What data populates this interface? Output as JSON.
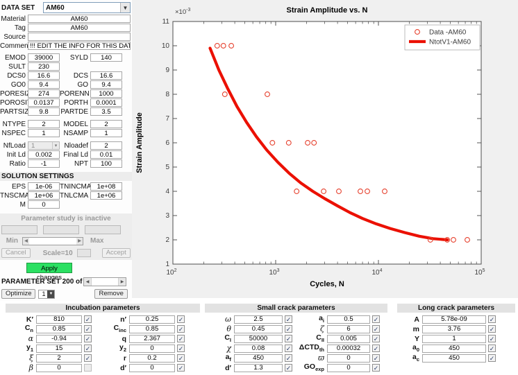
{
  "colors": {
    "apply_green": "#2be062",
    "figure_bg": "#f0f0f0",
    "series_red": "#eb1000",
    "marker_red": "#e6412e"
  },
  "left_panel": {
    "dataset_label": "DATA SET",
    "dataset_value": "AM60",
    "info_rows": [
      {
        "label": "Material",
        "value": "AM60"
      },
      {
        "label": "Tag",
        "value": "AM60"
      },
      {
        "label": "Source",
        "value": ""
      },
      {
        "label": "Comment",
        "value": "!!! EDIT THE INFO FOR THIS DAT"
      }
    ],
    "prop_rows": [
      {
        "l": {
          "label": "EMOD",
          "value": "39000"
        },
        "r": {
          "label": "SYLD",
          "value": "140"
        }
      },
      {
        "l": {
          "label": "SULT",
          "value": "230"
        },
        "r": null
      },
      {
        "l": {
          "label": "DCS0",
          "value": "16.6"
        },
        "r": {
          "label": "DCS",
          "value": "16.6"
        }
      },
      {
        "l": {
          "label": "GO0",
          "value": "9.4"
        },
        "r": {
          "label": "GO",
          "value": "9.4"
        }
      },
      {
        "l": {
          "label": "PORESIZ",
          "value": "274"
        },
        "r": {
          "label": "PORENN",
          "value": "1000"
        }
      },
      {
        "l": {
          "label": "POROSIT",
          "value": "0.0137"
        },
        "r": {
          "label": "PORTH",
          "value": "0.0001"
        }
      },
      {
        "l": {
          "label": "PARTSIZ",
          "value": "9.8"
        },
        "r": {
          "label": "PARTDE",
          "value": "3.5"
        }
      }
    ],
    "type_rows": [
      {
        "l": {
          "label": "NTYPE",
          "value": "2"
        },
        "r": {
          "label": "MODEL",
          "value": "2"
        }
      },
      {
        "l": {
          "label": "NSPEC",
          "value": "1"
        },
        "r": {
          "label": "NSAMP",
          "value": "1"
        }
      }
    ],
    "load_rows": [
      {
        "l": {
          "label": "NfLoad",
          "value": "1",
          "combo": true,
          "disabled": true
        },
        "r": {
          "label": "Nloadef",
          "value": "2"
        }
      },
      {
        "l": {
          "label": "Init Ld",
          "value": "0.002"
        },
        "r": {
          "label": "Final Ld",
          "value": "0.01"
        }
      },
      {
        "l": {
          "label": "Ratio",
          "value": "-1"
        },
        "r": {
          "label": "NPT",
          "value": "100"
        }
      }
    ],
    "solution_title": "SOLUTION SETTINGS",
    "solution_rows": [
      {
        "l": {
          "label": "EPS",
          "value": "1e-06"
        },
        "r": {
          "label": "TNINCMA",
          "value": "1e+08"
        }
      },
      {
        "l": {
          "label": "TNSCMA",
          "value": "1e+06"
        },
        "r": {
          "label": "TNLCMA",
          "value": "1e+06"
        }
      },
      {
        "l": {
          "label": "M",
          "value": "0"
        },
        "r": null
      }
    ],
    "param_study": {
      "status": "Parameter study is inactive",
      "min": "Min",
      "max": "Max",
      "cancel": "Cancel",
      "scale": "Scale=10",
      "accept": "Accept",
      "apply": "Apply changes",
      "set_label": "PARAMETER SET 200 of",
      "optimize": "Optimize",
      "set_index": "1",
      "remove": "Remove"
    }
  },
  "chart_data": {
    "type": "scatter",
    "title": "Strain Amplitude vs. N",
    "xlabel": "Cycles, N",
    "ylabel": "Strain Amplitude",
    "x_scale": "log",
    "xlim": [
      100,
      100000
    ],
    "ylim_e3": [
      1,
      11
    ],
    "y_values_scale": 0.001,
    "y_ticks": [
      1,
      2,
      3,
      4,
      5,
      6,
      7,
      8,
      9,
      10,
      11
    ],
    "x_ticks": [
      {
        "base": "10",
        "exp": "2"
      },
      {
        "base": "10",
        "exp": "3"
      },
      {
        "base": "10",
        "exp": "4"
      },
      {
        "base": "10",
        "exp": "5"
      }
    ],
    "y_multiplier": {
      "text": "×10",
      "exp": "-3"
    },
    "grid": false,
    "legend_position": "northeast",
    "legend": [
      {
        "label": "Data -AM60",
        "swatch": "marker"
      },
      {
        "label": "NtotV1-AM60",
        "swatch": "line"
      }
    ],
    "series": [
      {
        "name": "Data -AM60",
        "type": "scatter",
        "marker": "circle",
        "color": "#e6412e",
        "points_e3": [
          [
            270,
            10
          ],
          [
            310,
            10
          ],
          [
            370,
            10
          ],
          [
            320,
            8
          ],
          [
            830,
            8
          ],
          [
            930,
            6
          ],
          [
            1340,
            6
          ],
          [
            2050,
            6
          ],
          [
            2360,
            6
          ],
          [
            1600,
            4
          ],
          [
            2930,
            4
          ],
          [
            4120,
            4
          ],
          [
            6670,
            4
          ],
          [
            7800,
            4
          ],
          [
            11500,
            4
          ],
          [
            32000,
            2
          ],
          [
            46700,
            2
          ],
          [
            53700,
            2
          ],
          [
            73300,
            2
          ]
        ]
      },
      {
        "name": "NtotV1-AM60",
        "type": "line",
        "color": "#eb1000",
        "width": 4.2,
        "points_e3": [
          [
            230,
            9.9
          ],
          [
            280,
            9.0
          ],
          [
            340,
            8.25
          ],
          [
            420,
            7.5
          ],
          [
            520,
            6.85
          ],
          [
            650,
            6.25
          ],
          [
            820,
            5.7
          ],
          [
            1050,
            5.2
          ],
          [
            1350,
            4.75
          ],
          [
            1750,
            4.35
          ],
          [
            2300,
            4.0
          ],
          [
            3000,
            3.7
          ],
          [
            4000,
            3.4
          ],
          [
            5300,
            3.12
          ],
          [
            7000,
            2.88
          ],
          [
            9500,
            2.66
          ],
          [
            13000,
            2.47
          ],
          [
            18000,
            2.3
          ],
          [
            25000,
            2.15
          ],
          [
            34000,
            2.05
          ],
          [
            47000,
            2.0
          ]
        ]
      }
    ]
  },
  "panels": [
    {
      "title": "Incubation parameters",
      "rows": [
        {
          "l": {
            "label": "K′",
            "value": "810",
            "checked": true
          },
          "r": {
            "label": "n′",
            "value": "0.25",
            "checked": true
          }
        },
        {
          "l": {
            "label": "C",
            "sub": "n",
            "value": "0.85",
            "checked": true
          },
          "r": {
            "label": "C",
            "sub": "inc",
            "value": "0.85",
            "checked": true
          }
        },
        {
          "l": {
            "label": "α",
            "italic": true,
            "value": "-0.94",
            "checked": true
          },
          "r": {
            "label": "q",
            "value": "2.367",
            "checked": true
          }
        },
        {
          "l": {
            "label": "y",
            "sub": "1",
            "value": "15",
            "checked": true
          },
          "r": {
            "label": "y",
            "sub": "2",
            "value": "0",
            "checked": true
          }
        },
        {
          "l": {
            "label": "ξ",
            "italic": true,
            "value": "2",
            "checked": true
          },
          "r": {
            "label": "r",
            "value": "0.2",
            "checked": true
          }
        },
        {
          "l": {
            "label": "β",
            "italic": true,
            "value": "0",
            "checked": false
          },
          "r": {
            "label": "d′",
            "value": "0",
            "checked": true
          }
        }
      ]
    },
    {
      "title": "Small crack parameters",
      "rows": [
        {
          "l": {
            "label": "ω",
            "italic": true,
            "value": "2.5",
            "checked": true
          },
          "r": {
            "label": "a",
            "sub": "i",
            "value": "0.5",
            "checked": true
          }
        },
        {
          "l": {
            "label": "θ",
            "italic": true,
            "value": "0.45",
            "checked": true
          },
          "r": {
            "label": "ζ",
            "italic": true,
            "value": "6",
            "checked": true
          }
        },
        {
          "l": {
            "label": "C",
            "sub": "I",
            "value": "50000",
            "checked": true
          },
          "r": {
            "label": "C",
            "sub": "II",
            "value": "0.005",
            "checked": true
          }
        },
        {
          "l": {
            "label": "χ",
            "italic": true,
            "value": "0.08",
            "checked": true
          },
          "r": {
            "label": "ΔCTD",
            "sub": "th",
            "value": "0.00032",
            "checked": true
          }
        },
        {
          "l": {
            "label": "a",
            "sub": "f",
            "value": "450",
            "checked": true
          },
          "r": {
            "label": "ϖ",
            "italic": true,
            "value": "0",
            "checked": true
          }
        },
        {
          "l": {
            "label": "d′",
            "value": "1.3",
            "checked": true
          },
          "r": {
            "label": "GO",
            "sub": "exp",
            "value": "0",
            "checked": true
          }
        }
      ]
    },
    {
      "title": "Long crack parameters",
      "rows": [
        {
          "l": {
            "label": "A",
            "value": "5.78e-09",
            "checked": true
          },
          "r": null
        },
        {
          "l": {
            "label": "m",
            "value": "3.76",
            "checked": true
          },
          "r": null
        },
        {
          "l": {
            "label": "Y",
            "value": "1",
            "checked": true
          },
          "r": null
        },
        {
          "l": {
            "label": "a",
            "sub": "0",
            "value": "450",
            "checked": true
          },
          "r": null
        },
        {
          "l": {
            "label": "a",
            "sub": "c",
            "value": "450",
            "checked": true
          },
          "r": null
        }
      ]
    }
  ]
}
